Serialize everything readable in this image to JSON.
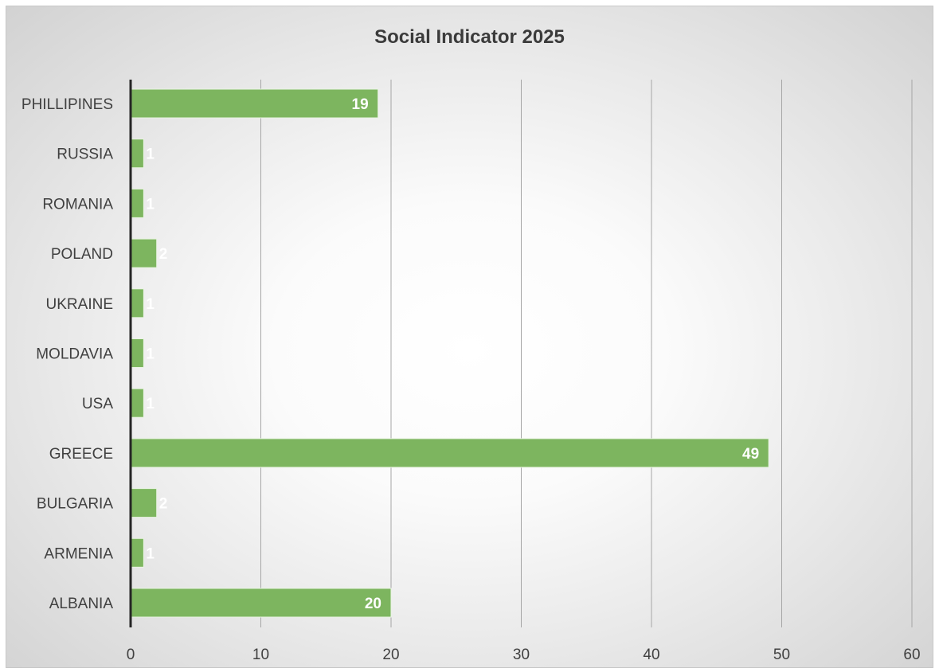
{
  "chart_data": {
    "type": "bar",
    "orientation": "horizontal",
    "title": "Social Indicator 2025",
    "xlabel": "",
    "ylabel": "",
    "categories": [
      "ALBANIA",
      "ARMENIA",
      "BULGARIA",
      "GREECE",
      "USA",
      "MOLDAVIA",
      "UKRAINE",
      "POLAND",
      "ROMANIA",
      "RUSSIA",
      "PHILLIPINES"
    ],
    "values": [
      20,
      1,
      2,
      49,
      1,
      1,
      1,
      2,
      1,
      1,
      19
    ],
    "data_labels": [
      "20",
      "1",
      "2",
      "49",
      "1",
      "1",
      "1",
      "2",
      "1",
      "1",
      "19"
    ],
    "xlim": [
      0,
      60
    ],
    "x_ticks": [
      0,
      10,
      20,
      30,
      40,
      50,
      60
    ],
    "x_tick_labels": [
      "0",
      "10",
      "20",
      "30",
      "40",
      "50",
      "60"
    ],
    "grid": "vertical",
    "legend": "none",
    "bar_color": "#7db55f",
    "label_color": "#ffffff"
  }
}
